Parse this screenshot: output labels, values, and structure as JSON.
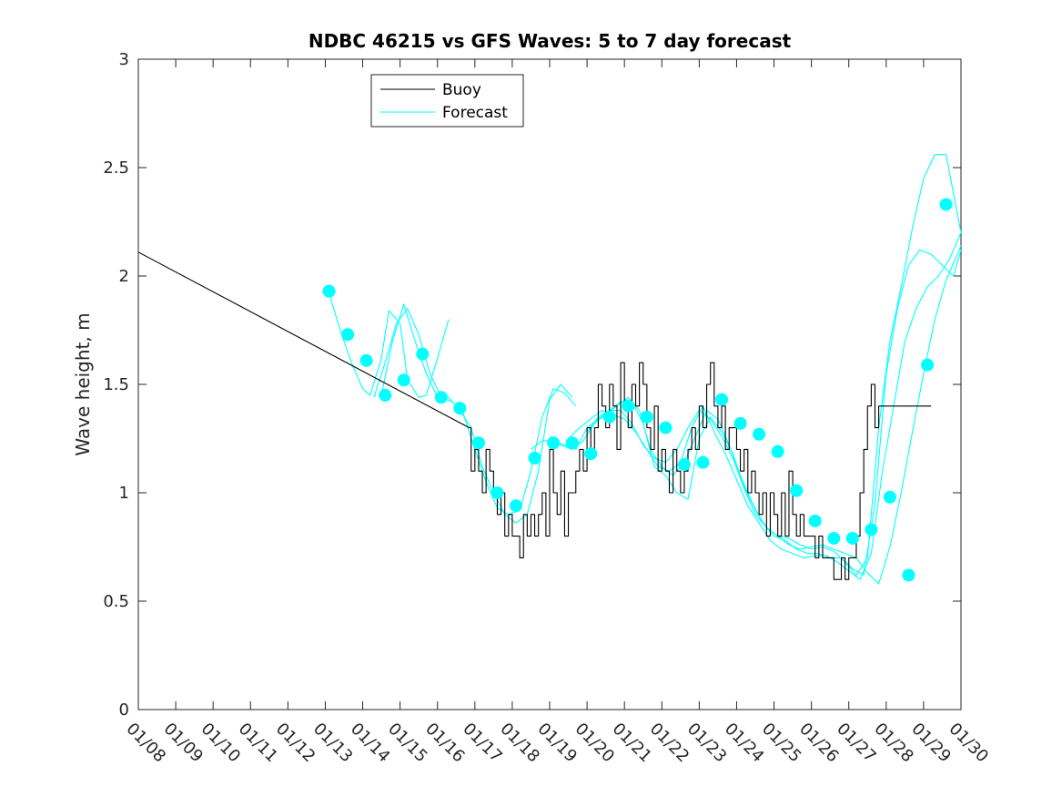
{
  "colors": {
    "buoy": "#000000",
    "forecast": "#00ffff",
    "axis": "#262626",
    "background": "#ffffff"
  },
  "chart_data": {
    "type": "line",
    "title": "NDBC 46215 vs GFS Waves: 5 to 7 day forecast",
    "xlabel": "",
    "ylabel": "Wave height, m",
    "xlim": [
      0,
      22
    ],
    "ylim": [
      0,
      3
    ],
    "x_unit": "days since 01/08",
    "xtick_labels": [
      "01/08",
      "01/09",
      "01/10",
      "01/11",
      "01/12",
      "01/13",
      "01/14",
      "01/15",
      "01/16",
      "01/17",
      "01/18",
      "01/19",
      "01/20",
      "01/21",
      "01/22",
      "01/23",
      "01/24",
      "01/25",
      "01/26",
      "01/27",
      "01/28",
      "01/29",
      "01/30"
    ],
    "ytick_labels": [
      "0",
      "0.5",
      "1",
      "1.5",
      "2",
      "2.5",
      "3"
    ],
    "yticks": [
      0,
      0.5,
      1,
      1.5,
      2,
      2.5,
      3
    ],
    "legend": {
      "position": "top-left",
      "entries": [
        "Buoy",
        "Forecast"
      ]
    },
    "series": [
      {
        "name": "Buoy",
        "style": "line",
        "x": [
          0,
          8.85,
          8.9,
          9.0,
          9.1,
          9.2,
          9.3,
          9.4,
          9.5,
          9.6,
          9.7,
          9.8,
          9.9,
          10.0,
          10.1,
          10.2,
          10.3,
          10.4,
          10.5,
          10.6,
          10.7,
          10.8,
          10.9,
          11.0,
          11.1,
          11.2,
          11.3,
          11.4,
          11.5,
          11.6,
          11.7,
          11.8,
          11.9,
          12.0,
          12.1,
          12.2,
          12.3,
          12.4,
          12.5,
          12.6,
          12.7,
          12.8,
          12.9,
          13.0,
          13.1,
          13.2,
          13.3,
          13.4,
          13.5,
          13.6,
          13.7,
          13.8,
          13.9,
          14.0,
          14.1,
          14.2,
          14.3,
          14.4,
          14.5,
          14.6,
          14.7,
          14.8,
          14.9,
          15.0,
          15.1,
          15.2,
          15.3,
          15.4,
          15.5,
          15.6,
          15.7,
          15.8,
          15.9,
          16.0,
          16.1,
          16.2,
          16.3,
          16.4,
          16.5,
          16.6,
          16.7,
          16.8,
          16.9,
          17.0,
          17.1,
          17.2,
          17.3,
          17.4,
          17.5,
          17.6,
          17.7,
          17.8,
          17.9,
          18.0,
          18.1,
          18.2,
          18.3,
          18.4,
          18.5,
          18.6,
          18.7,
          18.8,
          18.9,
          19.0,
          19.1,
          19.2,
          19.3,
          19.4,
          19.5,
          19.6,
          19.7,
          19.8,
          19.9,
          20.0,
          20.1,
          20.2,
          20.3,
          20.4,
          20.5,
          20.6,
          20.7,
          20.8,
          20.9,
          21.0,
          21.1,
          21.2
        ],
        "y": [
          2.11,
          1.3,
          1.1,
          1.2,
          1.1,
          1.0,
          1.2,
          1.1,
          1.0,
          0.9,
          1.0,
          0.8,
          0.9,
          0.8,
          0.8,
          0.7,
          0.9,
          0.8,
          0.9,
          0.8,
          0.9,
          1.0,
          0.8,
          1.2,
          1.0,
          0.9,
          1.1,
          0.8,
          1.0,
          1.0,
          1.1,
          1.2,
          1.1,
          1.3,
          1.2,
          1.3,
          1.5,
          1.4,
          1.3,
          1.5,
          1.4,
          1.2,
          1.6,
          1.4,
          1.3,
          1.5,
          1.4,
          1.6,
          1.5,
          1.3,
          1.2,
          1.4,
          1.1,
          1.2,
          1.1,
          1.0,
          1.2,
          1.1,
          1.0,
          1.1,
          1.2,
          1.3,
          1.2,
          1.4,
          1.3,
          1.5,
          1.6,
          1.4,
          1.3,
          1.4,
          1.2,
          1.3,
          1.3,
          1.2,
          1.1,
          1.2,
          1.0,
          1.1,
          1.0,
          0.9,
          1.0,
          0.8,
          1.0,
          0.9,
          0.8,
          1.0,
          0.8,
          1.1,
          0.9,
          0.8,
          0.9,
          0.8,
          0.8,
          0.8,
          0.7,
          0.8,
          0.7,
          0.7,
          0.7,
          0.6,
          0.6,
          0.7,
          0.6,
          0.7,
          0.7,
          0.8,
          1.0,
          1.2,
          1.4,
          1.5,
          1.3,
          1.4,
          1.4,
          1.4,
          1.4,
          1.4,
          1.4,
          1.4,
          1.4,
          1.4,
          1.4,
          1.4,
          1.4,
          1.4,
          1.4,
          1.4
        ]
      },
      {
        "name": "Forecast",
        "style": "line",
        "x": [
          5.1,
          5.4,
          5.7,
          6.0,
          6.2,
          6.5,
          6.7,
          7.0,
          7.2,
          7.5,
          7.7,
          8.0,
          8.3
        ],
        "y": [
          1.92,
          1.75,
          1.6,
          1.48,
          1.45,
          1.62,
          1.84,
          1.78,
          1.52,
          1.44,
          1.45,
          1.62,
          1.8
        ]
      },
      {
        "name": "Forecast",
        "style": "line",
        "x": [
          6.5,
          6.8,
          7.1,
          7.4,
          7.7,
          8.0,
          8.3,
          8.6,
          8.9,
          9.2,
          9.5,
          9.8,
          10.1,
          10.4,
          10.7,
          11.0,
          11.3,
          11.6
        ],
        "y": [
          1.45,
          1.7,
          1.87,
          1.7,
          1.55,
          1.44,
          1.44,
          1.38,
          1.3,
          1.12,
          1.0,
          0.9,
          0.86,
          0.9,
          1.1,
          1.43,
          1.5,
          1.44
        ]
      },
      {
        "name": "Forecast",
        "style": "line",
        "x": [
          6.3,
          6.6,
          6.9,
          7.2,
          7.5,
          7.8,
          8.1,
          8.4,
          8.7,
          9.0,
          9.3,
          9.6,
          9.9,
          10.2,
          10.5,
          10.8,
          11.1,
          11.4,
          11.7
        ],
        "y": [
          1.44,
          1.6,
          1.78,
          1.85,
          1.73,
          1.55,
          1.44,
          1.42,
          1.36,
          1.2,
          1.05,
          0.93,
          0.9,
          0.92,
          1.1,
          1.35,
          1.48,
          1.46,
          1.4
        ]
      },
      {
        "name": "Forecast",
        "style": "line",
        "x": [
          10.5,
          10.8,
          11.1,
          11.4,
          11.7,
          12.0,
          12.3,
          12.6,
          12.9,
          13.2,
          13.5,
          13.8,
          14.1,
          14.4,
          14.7,
          15.0,
          15.3,
          15.6,
          15.9,
          16.2,
          16.5,
          16.8,
          17.1,
          17.4,
          17.7,
          18.0,
          18.3,
          18.6,
          18.9,
          19.2,
          19.5,
          19.8,
          20.1,
          20.4,
          20.7,
          21.0,
          21.3,
          21.6,
          22.0
        ],
        "y": [
          1.2,
          1.24,
          1.24,
          1.22,
          1.2,
          1.3,
          1.34,
          1.38,
          1.42,
          1.42,
          1.32,
          1.12,
          1.08,
          1.0,
          0.97,
          1.25,
          1.35,
          1.28,
          1.18,
          1.03,
          0.92,
          0.84,
          0.8,
          0.79,
          0.76,
          0.74,
          0.75,
          0.73,
          0.68,
          0.62,
          0.7,
          1.3,
          1.7,
          1.95,
          2.22,
          2.45,
          2.56,
          2.56,
          2.2
        ]
      },
      {
        "name": "Forecast",
        "style": "line",
        "x": [
          11.0,
          11.3,
          11.6,
          11.9,
          12.2,
          12.5,
          12.8,
          13.1,
          13.4,
          13.7,
          14.0,
          14.3,
          14.6,
          14.9,
          15.2,
          15.5,
          15.8,
          16.1,
          16.4,
          16.7,
          17.0,
          17.3,
          17.6,
          17.9,
          18.2,
          18.5,
          18.8,
          19.1,
          19.4,
          19.7,
          20.0,
          20.3,
          20.6,
          20.9,
          21.2,
          21.5,
          21.8,
          22.0
        ],
        "y": [
          1.26,
          1.22,
          1.2,
          1.24,
          1.32,
          1.36,
          1.4,
          1.44,
          1.38,
          1.2,
          1.12,
          1.08,
          1.14,
          1.26,
          1.38,
          1.34,
          1.22,
          1.08,
          0.96,
          0.86,
          0.8,
          0.78,
          0.74,
          0.72,
          0.72,
          0.7,
          0.7,
          0.65,
          0.62,
          0.95,
          1.55,
          1.85,
          2.05,
          2.12,
          2.1,
          2.05,
          2.0,
          2.12
        ]
      },
      {
        "name": "Forecast",
        "style": "line",
        "x": [
          11.5,
          11.8,
          12.1,
          12.4,
          12.7,
          13.0,
          13.3,
          13.6,
          13.9,
          14.2,
          14.5,
          14.8,
          15.1,
          15.4,
          15.7,
          16.0,
          16.3,
          16.6,
          16.9,
          17.2,
          17.5,
          17.8,
          18.1,
          18.4,
          18.7,
          19.0,
          19.3,
          19.6,
          19.9,
          20.2,
          20.5,
          20.8,
          21.1,
          21.4,
          21.7,
          22.0
        ],
        "y": [
          1.25,
          1.3,
          1.34,
          1.38,
          1.36,
          1.34,
          1.28,
          1.2,
          1.12,
          1.1,
          1.14,
          1.3,
          1.4,
          1.28,
          1.18,
          1.06,
          0.94,
          0.86,
          0.78,
          0.74,
          0.72,
          0.7,
          0.71,
          0.71,
          0.68,
          0.64,
          0.6,
          0.72,
          1.1,
          1.4,
          1.7,
          1.85,
          1.95,
          2.0,
          2.08,
          2.2
        ]
      },
      {
        "name": "Forecast",
        "style": "line",
        "x": [
          12.0,
          12.3,
          12.6,
          12.9,
          13.2,
          13.5,
          13.8,
          14.1,
          14.4,
          14.7,
          15.0,
          15.3,
          15.6,
          15.9,
          16.2,
          16.5,
          16.8,
          17.1,
          17.4,
          17.7,
          18.0,
          18.3,
          18.6,
          18.9,
          19.2,
          19.5,
          19.8,
          20.1,
          20.4,
          20.7,
          21.0,
          21.3,
          21.6,
          22.0
        ],
        "y": [
          1.28,
          1.35,
          1.38,
          1.38,
          1.32,
          1.22,
          1.16,
          1.14,
          1.2,
          1.3,
          1.38,
          1.34,
          1.26,
          1.16,
          1.02,
          0.9,
          0.84,
          0.8,
          0.76,
          0.74,
          0.75,
          0.76,
          0.74,
          0.72,
          0.7,
          0.63,
          0.58,
          0.75,
          1.0,
          1.28,
          1.55,
          1.8,
          1.98,
          2.14
        ]
      },
      {
        "name": "Forecast",
        "style": "scatter",
        "x": [
          5.1,
          5.6,
          6.1,
          6.6,
          7.1,
          7.6,
          8.1,
          8.6,
          9.1,
          9.6,
          10.1,
          10.6,
          11.1,
          11.6,
          12.1,
          12.6,
          13.1,
          13.6,
          14.1,
          14.6,
          15.1,
          15.6,
          16.1,
          16.6,
          17.1,
          17.6,
          18.1,
          18.6,
          19.1,
          19.6,
          20.1,
          20.6,
          21.1,
          21.6
        ],
        "y": [
          1.93,
          1.73,
          1.61,
          1.45,
          1.52,
          1.64,
          1.44,
          1.39,
          1.23,
          1.0,
          0.94,
          1.16,
          1.23,
          1.23,
          1.18,
          1.35,
          1.4,
          1.35,
          1.3,
          1.13,
          1.14,
          1.43,
          1.32,
          1.27,
          1.19,
          1.01,
          0.87,
          0.79,
          0.79,
          0.83,
          0.98,
          0.62,
          1.59,
          2.33
        ]
      }
    ]
  }
}
